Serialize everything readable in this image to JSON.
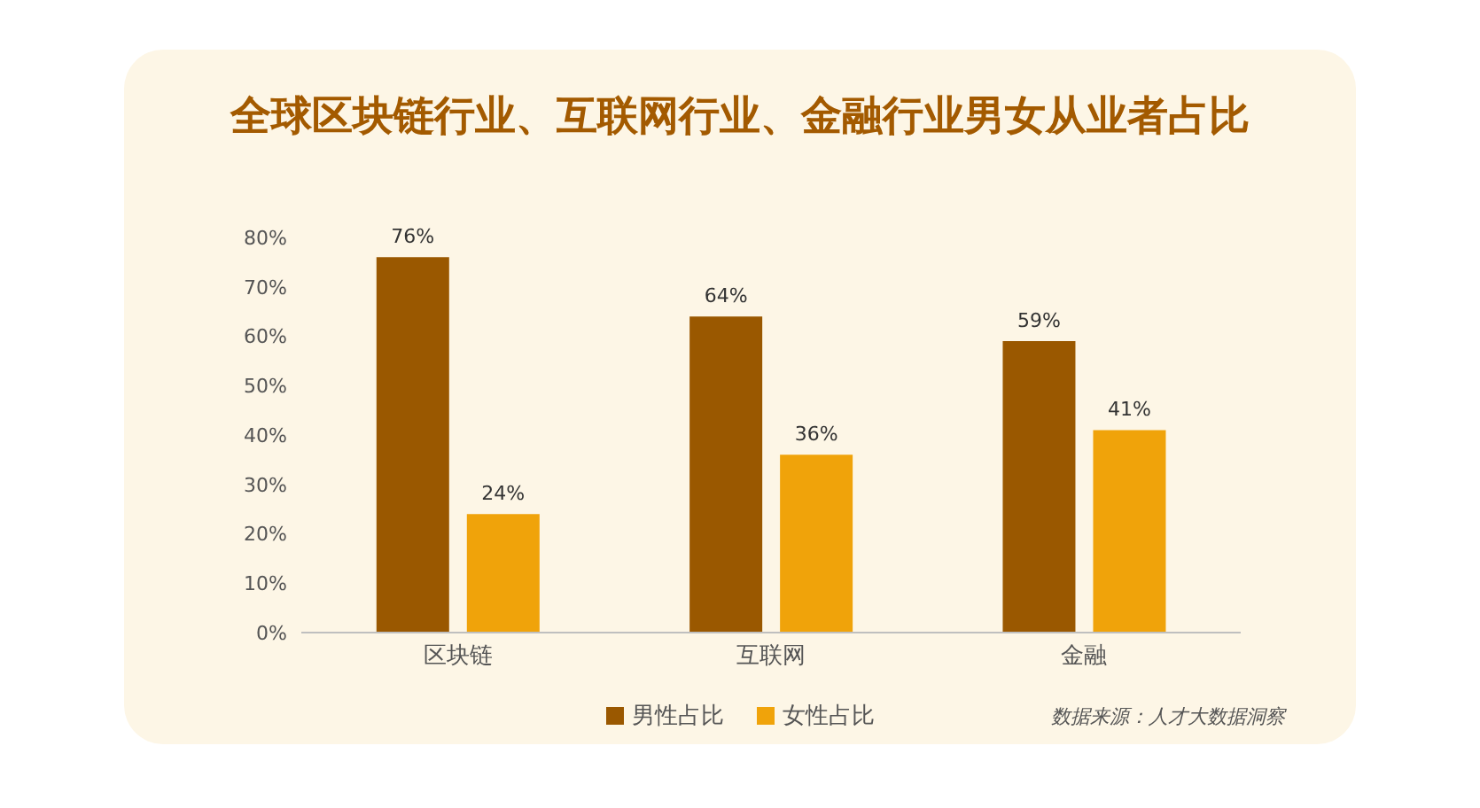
{
  "chart_data": {
    "type": "bar",
    "title": "全球区块链行业、互联网行业、金融行业男女从业者占比",
    "categories": [
      "区块链",
      "互联网",
      "金融"
    ],
    "series": [
      {
        "name": "男性占比",
        "color": "#9a5800",
        "values": [
          76,
          64,
          59
        ],
        "value_labels": [
          "76%",
          "64%",
          "59%"
        ]
      },
      {
        "name": "女性占比",
        "color": "#f0a30a",
        "values": [
          24,
          36,
          41
        ],
        "value_labels": [
          "24%",
          "36%",
          "41%"
        ]
      }
    ],
    "ylim": [
      0,
      80
    ],
    "yticks": [
      {
        "value": 0,
        "label": "0%"
      },
      {
        "value": 10,
        "label": "10%"
      },
      {
        "value": 20,
        "label": "20%"
      },
      {
        "value": 30,
        "label": "30%"
      },
      {
        "value": 40,
        "label": "40%"
      },
      {
        "value": 50,
        "label": "50%"
      },
      {
        "value": 60,
        "label": "60%"
      },
      {
        "value": 70,
        "label": "70%"
      },
      {
        "value": 80,
        "label": "80%"
      }
    ],
    "grid": false,
    "legend": "bottom",
    "annotations": [
      "数据来源：人才大数据洞察"
    ]
  }
}
